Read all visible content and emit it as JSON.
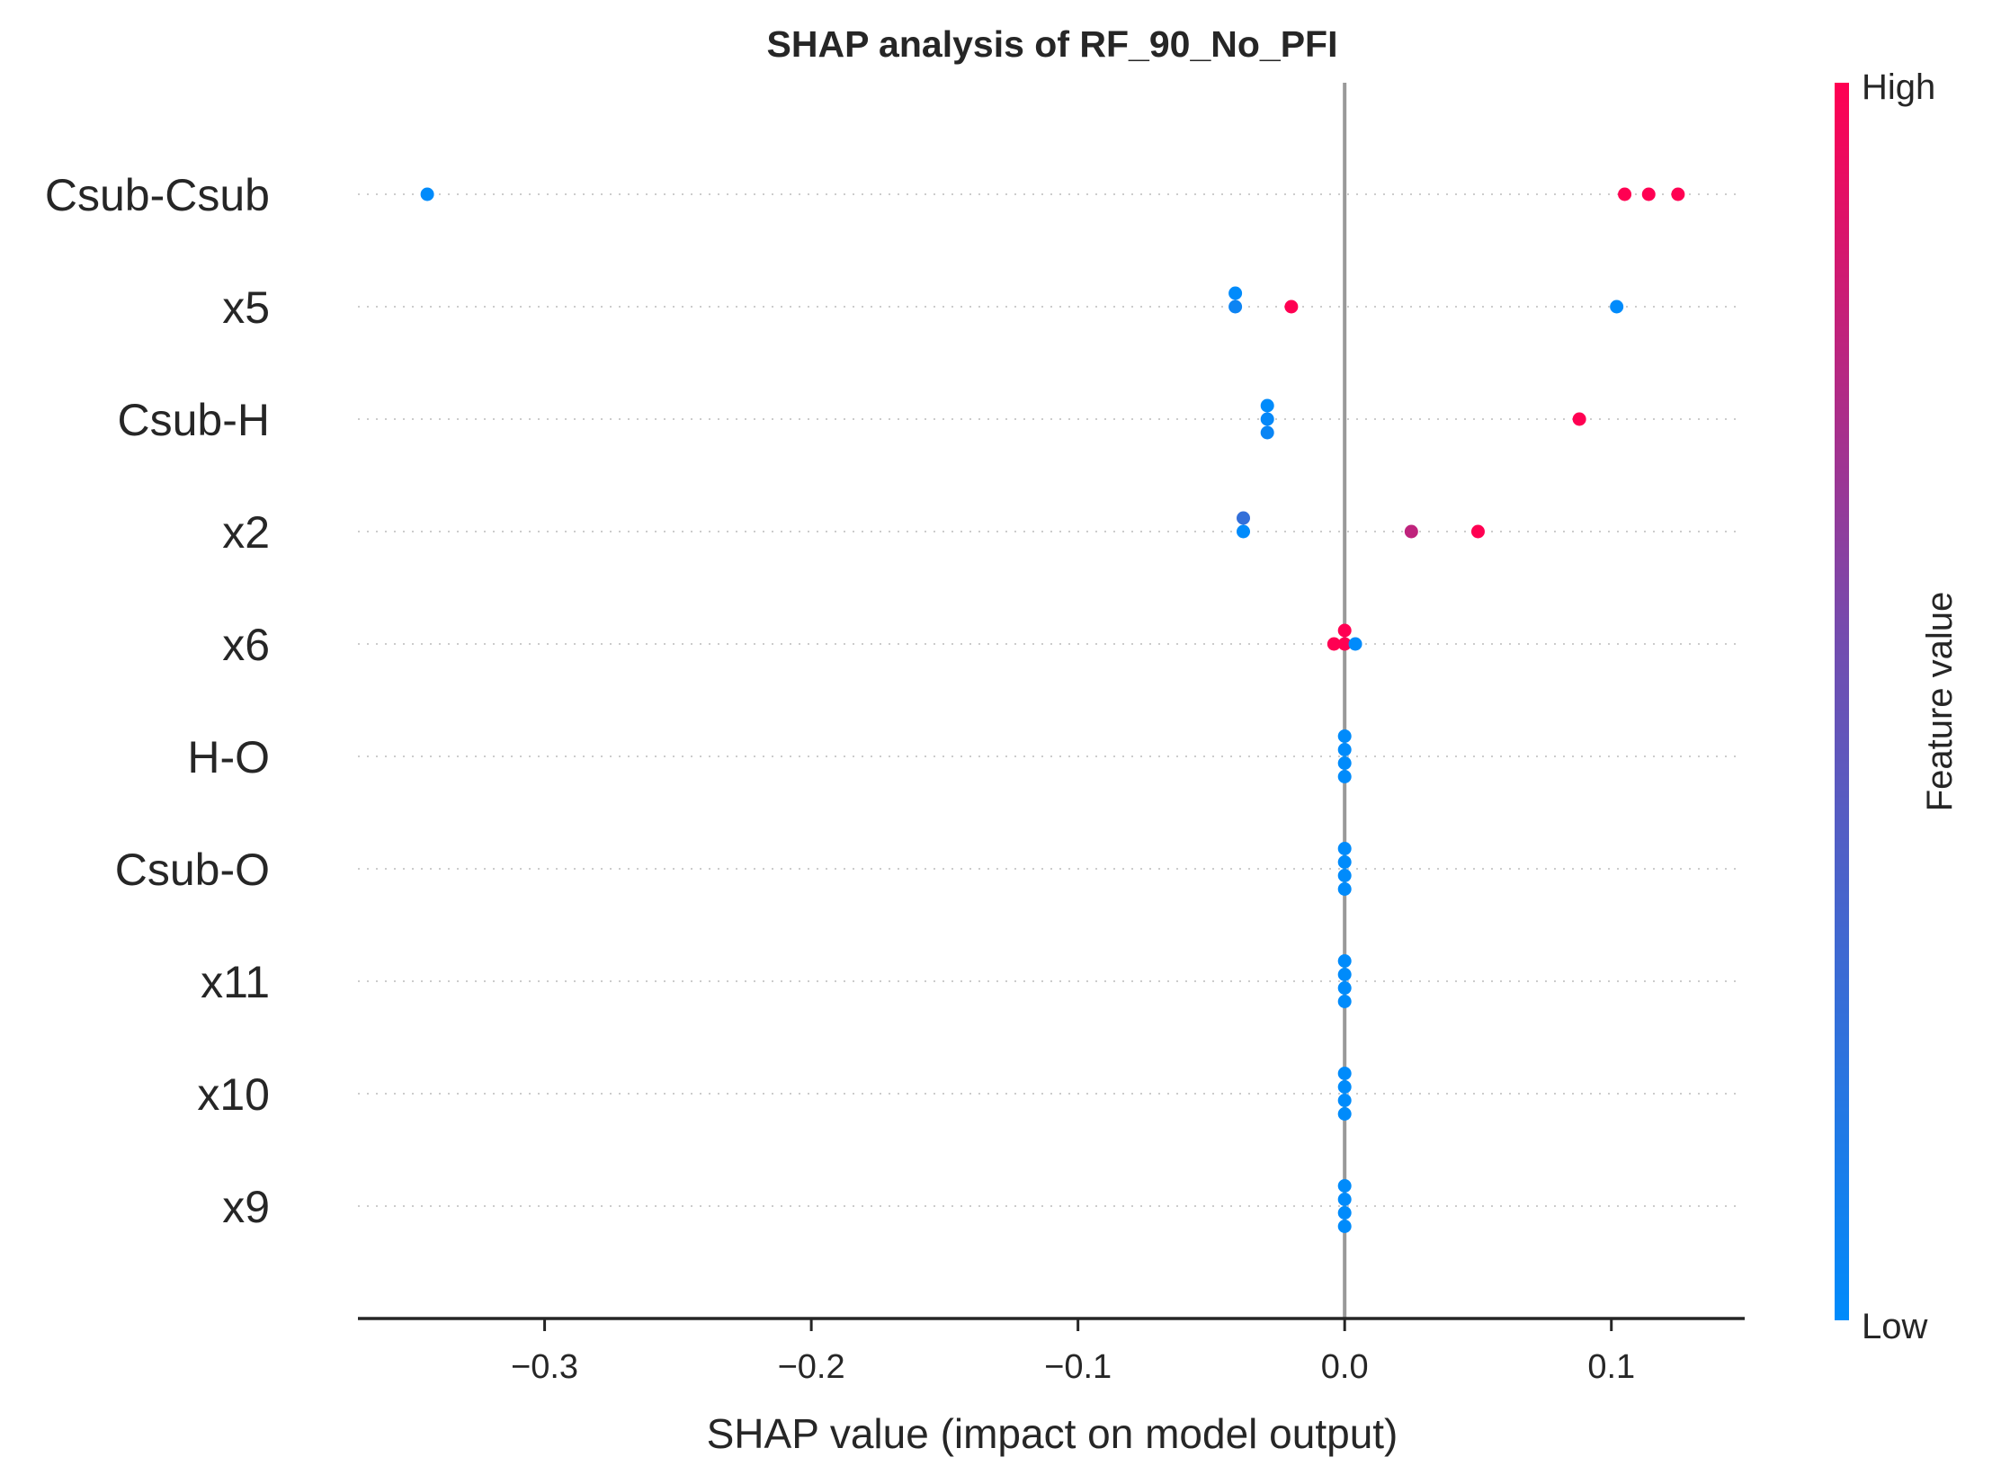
{
  "chart_data": {
    "type": "scatter",
    "subtype": "shap-beeswarm",
    "title": "SHAP analysis of RF_90_No_PFI",
    "xlabel": "SHAP value (impact on model output)",
    "xlim": [
      -0.37,
      0.15
    ],
    "xticks": [
      -0.3,
      -0.2,
      -0.1,
      0.0,
      0.1
    ],
    "xtick_labels": [
      "−0.3",
      "−0.2",
      "−0.1",
      "0.0",
      "0.1"
    ],
    "grid": false,
    "zero_line": true,
    "features": [
      {
        "name": "Csub-Csub",
        "points": [
          {
            "shap": -0.344,
            "value": 0.0,
            "offset": 0
          },
          {
            "shap": 0.105,
            "value": 1.0,
            "offset": 0
          },
          {
            "shap": 0.114,
            "value": 1.0,
            "offset": 0
          },
          {
            "shap": 0.125,
            "value": 1.0,
            "offset": 0
          }
        ]
      },
      {
        "name": "x5",
        "points": [
          {
            "shap": -0.041,
            "value": 0.0,
            "offset": -1
          },
          {
            "shap": -0.041,
            "value": 0.05,
            "offset": 0
          },
          {
            "shap": -0.02,
            "value": 1.0,
            "offset": 0
          },
          {
            "shap": 0.102,
            "value": 0.0,
            "offset": 0
          }
        ]
      },
      {
        "name": "Csub-H",
        "points": [
          {
            "shap": -0.029,
            "value": 0.0,
            "offset": -1
          },
          {
            "shap": -0.029,
            "value": 0.02,
            "offset": 0
          },
          {
            "shap": -0.029,
            "value": 0.04,
            "offset": 1
          },
          {
            "shap": 0.088,
            "value": 1.0,
            "offset": 0
          }
        ]
      },
      {
        "name": "x2",
        "points": [
          {
            "shap": -0.038,
            "value": 0.2,
            "offset": -1
          },
          {
            "shap": -0.038,
            "value": 0.0,
            "offset": 0
          },
          {
            "shap": 0.025,
            "value": 0.75,
            "offset": 0
          },
          {
            "shap": 0.05,
            "value": 1.0,
            "offset": 0
          }
        ]
      },
      {
        "name": "x6",
        "points": [
          {
            "shap": 0.0,
            "value": 1.0,
            "offset": -1
          },
          {
            "shap": -0.004,
            "value": 1.0,
            "offset": 0
          },
          {
            "shap": 0.0,
            "value": 1.0,
            "offset": 0
          },
          {
            "shap": 0.004,
            "value": 0.0,
            "offset": 0
          }
        ]
      },
      {
        "name": "H-O",
        "points": [
          {
            "shap": 0.0,
            "value": 0.0,
            "offset": -1.5
          },
          {
            "shap": 0.0,
            "value": 0.0,
            "offset": -0.5
          },
          {
            "shap": 0.0,
            "value": 0.0,
            "offset": 0.5
          },
          {
            "shap": 0.0,
            "value": 0.0,
            "offset": 1.5
          }
        ]
      },
      {
        "name": "Csub-O",
        "points": [
          {
            "shap": 0.0,
            "value": 0.0,
            "offset": -1.5
          },
          {
            "shap": 0.0,
            "value": 0.0,
            "offset": -0.5
          },
          {
            "shap": 0.0,
            "value": 0.0,
            "offset": 0.5
          },
          {
            "shap": 0.0,
            "value": 0.0,
            "offset": 1.5
          }
        ]
      },
      {
        "name": "x11",
        "points": [
          {
            "shap": 0.0,
            "value": 0.0,
            "offset": -1.5
          },
          {
            "shap": 0.0,
            "value": 0.0,
            "offset": -0.5
          },
          {
            "shap": 0.0,
            "value": 0.0,
            "offset": 0.5
          },
          {
            "shap": 0.0,
            "value": 0.0,
            "offset": 1.5
          }
        ]
      },
      {
        "name": "x10",
        "points": [
          {
            "shap": 0.0,
            "value": 0.0,
            "offset": -1.5
          },
          {
            "shap": 0.0,
            "value": 0.0,
            "offset": -0.5
          },
          {
            "shap": 0.0,
            "value": 0.0,
            "offset": 0.5
          },
          {
            "shap": 0.0,
            "value": 0.0,
            "offset": 1.5
          }
        ]
      },
      {
        "name": "x9",
        "points": [
          {
            "shap": 0.0,
            "value": 0.0,
            "offset": -1.5
          },
          {
            "shap": 0.0,
            "value": 0.0,
            "offset": -0.5
          },
          {
            "shap": 0.0,
            "value": 0.0,
            "offset": 0.5
          },
          {
            "shap": 0.0,
            "value": 0.0,
            "offset": 1.5
          }
        ]
      }
    ],
    "colorbar": {
      "label": "Feature value",
      "high_label": "High",
      "low_label": "Low",
      "low_color": "#008bfb",
      "high_color": "#ff0052",
      "placement": "right"
    },
    "colors": {
      "axis": "#262626",
      "zero_line": "#999999",
      "row_guides": "#cccccc"
    }
  }
}
